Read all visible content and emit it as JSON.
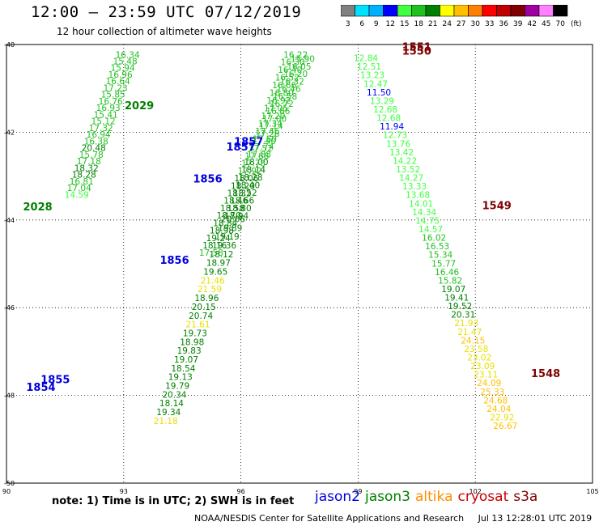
{
  "title": "12:00 – 23:59 UTC 07/12/2019",
  "subtitle": "12 hour collection of altimeter wave heights",
  "note": "note: 1) Time is in UTC; 2) SWH is in feet",
  "footer": {
    "agency": "NOAA/NESDIS Center for Satellite Applications and Research",
    "stamp": "Jul 13 12:28:01 UTC 2019"
  },
  "scale": {
    "unit": "(ft)",
    "labels": [
      "3",
      "6",
      "9",
      "12",
      "15",
      "18",
      "21",
      "24",
      "27",
      "30",
      "33",
      "36",
      "39",
      "42",
      "45",
      "70"
    ],
    "colors": [
      "#808080",
      "#00e0ff",
      "#00b0ff",
      "#0000ff",
      "#40ff40",
      "#20c020",
      "#008000",
      "#ffff00",
      "#ffc000",
      "#ff8000",
      "#ff0000",
      "#c00000",
      "#800000",
      "#a000a0",
      "#ff80ff",
      "#000000"
    ]
  },
  "sat_colors": {
    "jason2": "#0000dd",
    "jason3": "#008000",
    "altika": "#ff8c00",
    "cryosat": "#cc0000",
    "s3a": "#800000"
  },
  "legend": [
    {
      "name": "jason2",
      "color": "#0000dd"
    },
    {
      "name": "jason3",
      "color": "#008000"
    },
    {
      "name": "altika",
      "color": "#ff8c00"
    },
    {
      "name": "cryosat",
      "color": "#cc0000"
    },
    {
      "name": "s3a",
      "color": "#800000"
    }
  ],
  "axes": {
    "lon_ticks": [
      "90",
      "93",
      "96",
      "99",
      "102",
      "105"
    ],
    "lat_ticks": [
      "-40",
      "-42",
      "-44",
      "-46",
      "-48",
      "-50"
    ]
  },
  "chart_data": {
    "type": "scatter",
    "title": "12:00 – 23:59 UTC 07/12/2019",
    "subtitle": "12 hour collection of altimeter wave heights",
    "xlim": [
      90,
      105
    ],
    "ylim": [
      -50,
      -40
    ],
    "x_ticks": [
      90,
      93,
      96,
      99,
      102,
      105
    ],
    "y_ticks": [
      -40,
      -42,
      -44,
      -46,
      -48,
      -50
    ],
    "grid": true,
    "unit": "ft",
    "tracks": [
      {
        "sat": "jason3",
        "start": [
          93.1,
          -40.3
        ],
        "step": [
          -0.062,
          0.152
        ],
        "values": [
          16.34,
          15.48,
          15.94,
          16.96,
          16.64,
          17.23,
          15.85,
          16.76,
          16.93,
          15.41,
          15.12,
          17.32,
          16.94,
          16.38,
          20.48,
          15.78,
          17.18,
          18.32,
          18.28,
          16.81,
          17.04,
          14.59
        ]
      },
      {
        "sat": "jason3",
        "start": [
          95.8,
          -44.05
        ],
        "step": [
          -0.075,
          0.2
        ],
        "values": [
          20.06,
          19.89,
          19.19,
          19.36,
          18.12,
          18.97,
          19.65,
          21.46,
          21.59,
          18.96,
          20.15,
          20.74,
          21.61,
          19.73,
          18.98,
          19.83,
          19.07,
          18.54,
          19.13,
          19.79,
          20.34,
          18.14,
          19.34,
          21.18
        ]
      },
      {
        "sat": "jason3",
        "start": [
          97.4,
          -40.3
        ],
        "step": [
          -0.072,
          0.175
        ],
        "values": [
          16.22,
          16.3,
          16.4,
          16.52,
          16.66,
          16.8,
          16.92,
          17.05,
          17.2,
          17.34,
          17.46,
          17.6,
          17.74,
          17.88,
          18.0,
          18.14,
          18.28,
          18.4,
          18.52,
          18.66,
          18.8,
          18.94
        ]
      },
      {
        "sat": "jason3",
        "start": [
          97.58,
          -40.4
        ],
        "step": [
          -0.09,
          0.17
        ],
        "values": [
          15.9,
          16.05,
          16.2,
          16.32,
          16.46,
          16.58,
          16.72,
          16.86,
          17.0,
          17.14,
          17.26,
          17.4,
          17.52,
          17.66,
          17.78,
          17.92,
          18.06,
          18.2,
          18.32,
          18.46,
          18.58,
          18.7,
          18.84,
          18.98,
          19.24,
          18.16,
          17.58
        ]
      },
      {
        "sat": "jason3",
        "start": [
          99.2,
          -40.38
        ],
        "step": [
          0.083,
          0.195
        ],
        "values": [
          12.84,
          12.51,
          13.23,
          12.47,
          11.5,
          13.29,
          12.68,
          12.68,
          11.94,
          12.73,
          13.76,
          13.42,
          14.22,
          13.52,
          14.27,
          13.33,
          13.68,
          14.01,
          14.34,
          14.75,
          14.57,
          16.02,
          16.53,
          15.34,
          15.77,
          16.46,
          15.82,
          19.07,
          19.41,
          19.52,
          20.31,
          21.93,
          21.47,
          24.15,
          23.58,
          23.02,
          23.09,
          23.11,
          24.09,
          25.33,
          24.68,
          24.04,
          22.92,
          26.67
        ]
      }
    ],
    "pass_labels": [
      {
        "text": "2029",
        "lon": 93.4,
        "lat": -41.48,
        "sat": "jason3"
      },
      {
        "text": "2028",
        "lon": 90.8,
        "lat": -43.78,
        "sat": "jason3"
      },
      {
        "text": "1857",
        "lon": 96.2,
        "lat": -42.3,
        "sat": "jason2"
      },
      {
        "text": "1857",
        "lon": 96.0,
        "lat": -42.42,
        "sat": "jason2"
      },
      {
        "text": "1856",
        "lon": 95.15,
        "lat": -43.15,
        "sat": "jason2"
      },
      {
        "text": "1856",
        "lon": 94.3,
        "lat": -45.0,
        "sat": "jason2"
      },
      {
        "text": "1855",
        "lon": 91.25,
        "lat": -47.72,
        "sat": "jason2"
      },
      {
        "text": "1854",
        "lon": 90.88,
        "lat": -47.9,
        "sat": "jason2"
      },
      {
        "text": "1551",
        "lon": 100.5,
        "lat": -40.14,
        "sat": "s3a"
      },
      {
        "text": "1550",
        "lon": 100.5,
        "lat": -40.23,
        "sat": "s3a"
      },
      {
        "text": "1549",
        "lon": 102.55,
        "lat": -43.75,
        "sat": "s3a"
      },
      {
        "text": "1548",
        "lon": 103.8,
        "lat": -47.58,
        "sat": "s3a"
      }
    ]
  }
}
